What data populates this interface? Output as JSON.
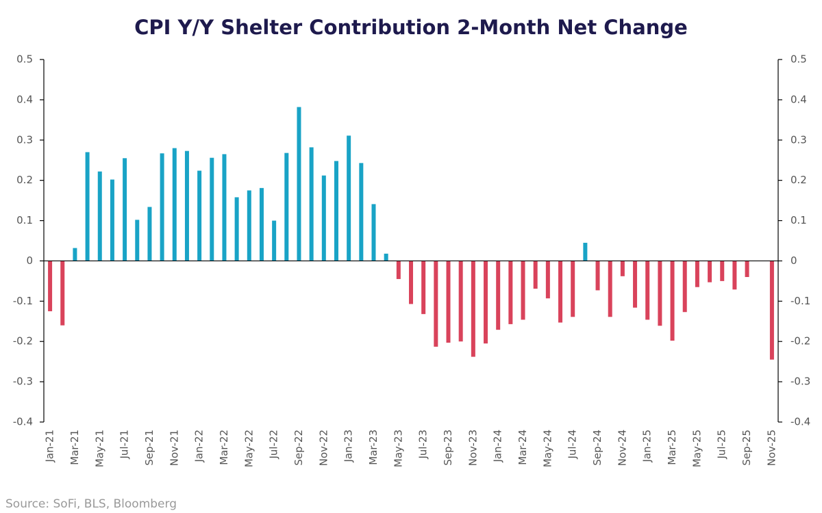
{
  "chart_data": {
    "type": "bar",
    "title": "CPI Y/Y Shelter Contribution 2-Month Net Change",
    "source": "Source: SoFi, BLS, Bloomberg",
    "categories": [
      "Jan-21",
      null,
      "Mar-21",
      null,
      "May-21",
      null,
      "Jul-21",
      null,
      "Sep-21",
      null,
      "Nov-21",
      null,
      "Jan-22",
      null,
      "Mar-22",
      null,
      "May-22",
      null,
      "Jul-22",
      null,
      "Sep-22",
      null,
      "Nov-22",
      null,
      "Jan-23",
      null,
      "Mar-23",
      null,
      "May-23",
      null,
      "Jul-23",
      null,
      "Sep-23",
      null,
      "Nov-23",
      null,
      "Jan-24",
      null,
      "Mar-24",
      null,
      "May-24",
      null,
      "Jul-24",
      null,
      "Sep-24",
      null,
      "Nov-24",
      null,
      "Jan-25",
      null,
      "Mar-25",
      null,
      "May-25",
      null,
      "Jul-25",
      null,
      "Sep-25",
      null,
      "Nov-25"
    ],
    "values": [
      -0.125,
      -0.16,
      0.032,
      0.27,
      0.222,
      0.202,
      0.255,
      0.102,
      0.134,
      0.267,
      0.28,
      0.273,
      0.224,
      0.256,
      0.265,
      0.158,
      0.175,
      0.181,
      0.1,
      0.268,
      0.382,
      0.282,
      0.212,
      0.248,
      0.311,
      0.243,
      0.141,
      0.018,
      -0.045,
      -0.107,
      -0.132,
      -0.213,
      -0.203,
      -0.2,
      -0.238,
      -0.205,
      -0.171,
      -0.157,
      -0.146,
      -0.069,
      -0.093,
      -0.153,
      -0.139,
      0.045,
      -0.073,
      -0.139,
      -0.038,
      -0.116,
      -0.146,
      -0.161,
      -0.198,
      -0.127,
      -0.065,
      -0.053,
      -0.05,
      -0.071,
      -0.04,
      null,
      -0.245
    ],
    "positive_color": "#19a3c6",
    "negative_color": "#d9435b",
    "ylim": [
      -0.4,
      0.5
    ],
    "yticks": [
      -0.4,
      -0.3,
      -0.2,
      -0.1,
      0,
      0.1,
      0.2,
      0.3,
      0.4,
      0.5
    ],
    "y2lim": [
      -0.4,
      0.5
    ],
    "y2ticks": [
      -0.4,
      -0.3,
      -0.2,
      -0.1,
      0,
      0.1,
      0.2,
      0.3,
      0.4,
      0.5
    ],
    "grid": false
  }
}
